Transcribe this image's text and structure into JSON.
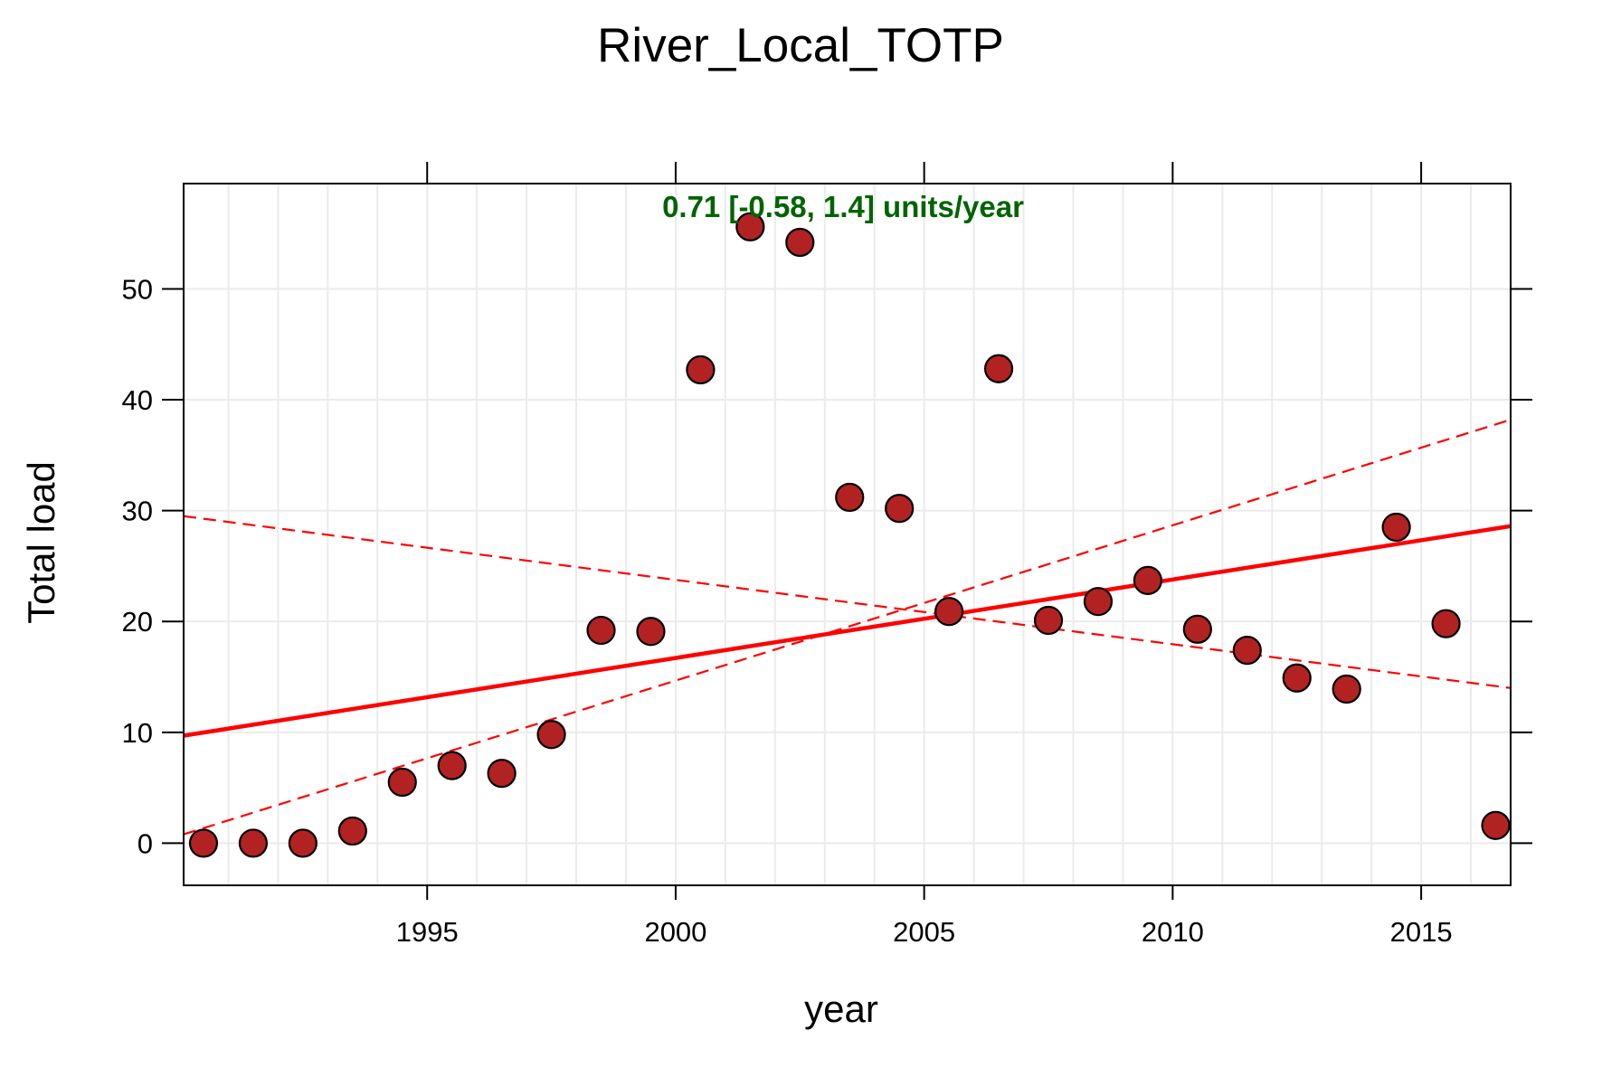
{
  "chart_data": {
    "type": "scatter",
    "title": "River_Local_TOTP",
    "xlabel": "year",
    "ylabel": "Total load",
    "xlim": [
      1990.1,
      2016.8
    ],
    "ylim": [
      -3.8,
      59.5
    ],
    "x_ticks": [
      1995,
      2000,
      2005,
      2010,
      2015
    ],
    "y_ticks": [
      0,
      10,
      20,
      30,
      40,
      50
    ],
    "grid": true,
    "annotation": "0.71 [-0.58, 1.4] units/year",
    "colors": {
      "point_fill": "#b22222",
      "point_stroke": "#000000",
      "trend_line": "#ff0000",
      "annotation": "#006400",
      "grid": "#ebebeb"
    },
    "series": [
      {
        "x": [
          1990.5,
          1991.5,
          1992.5,
          1993.5,
          1994.5,
          1995.5,
          1996.5,
          1997.5,
          1998.5,
          1999.5,
          2000.5,
          2001.5,
          2002.5,
          2003.5,
          2004.5,
          2005.5,
          2006.5,
          2007.5,
          2008.5,
          2009.5,
          2010.5,
          2011.5,
          2012.5,
          2013.5,
          2014.5,
          2015.5,
          2016.5
        ],
        "y": [
          0,
          0,
          0,
          1.1,
          5.5,
          7.0,
          6.3,
          9.8,
          19.2,
          19.1,
          42.7,
          55.6,
          54.2,
          31.2,
          30.2,
          20.9,
          42.8,
          20.1,
          21.8,
          23.7,
          19.3,
          17.4,
          14.9,
          13.9,
          28.5,
          19.8,
          1.6
        ]
      }
    ],
    "lines": [
      {
        "style": "solid",
        "points": [
          [
            1990.1,
            9.7
          ],
          [
            2016.8,
            28.6
          ]
        ]
      },
      {
        "style": "dashed",
        "points": [
          [
            1990.1,
            0.8
          ],
          [
            2016.8,
            38.2
          ]
        ]
      },
      {
        "style": "dashed",
        "points": [
          [
            1990.1,
            29.5
          ],
          [
            2016.8,
            14.0
          ]
        ]
      }
    ]
  }
}
